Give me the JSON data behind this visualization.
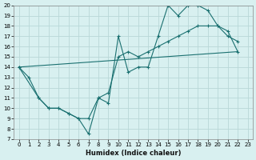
{
  "xlabel": "Humidex (Indice chaleur)",
  "bg_color": "#d8f0f0",
  "grid_color": "#b8d8d8",
  "line_color": "#1a7070",
  "xlim": [
    -0.5,
    23.5
  ],
  "ylim": [
    7,
    20
  ],
  "yticks": [
    7,
    8,
    9,
    10,
    11,
    12,
    13,
    14,
    15,
    16,
    17,
    18,
    19,
    20
  ],
  "xticks": [
    0,
    1,
    2,
    3,
    4,
    5,
    6,
    7,
    8,
    9,
    10,
    11,
    12,
    13,
    14,
    15,
    16,
    17,
    18,
    19,
    20,
    21,
    22,
    23
  ],
  "line1_x": [
    0,
    1,
    2,
    3,
    4,
    5,
    6,
    7,
    8,
    9,
    10,
    11,
    12,
    13,
    14,
    15,
    16,
    17,
    18,
    19,
    20,
    21,
    22
  ],
  "line1_y": [
    14,
    13,
    11,
    10,
    10,
    9.5,
    9,
    7.5,
    11,
    10.5,
    17,
    13.5,
    14,
    14,
    17,
    20,
    19,
    20,
    20,
    19.5,
    18,
    17,
    16.5
  ],
  "line2_x": [
    0,
    2,
    3,
    4,
    5,
    6,
    7,
    8,
    9,
    10,
    11,
    12,
    13,
    14,
    15,
    16,
    17,
    18,
    19,
    20,
    21,
    22
  ],
  "line2_y": [
    14,
    11,
    10,
    10,
    9.5,
    9,
    9,
    11,
    11.5,
    15,
    15.5,
    15,
    15.5,
    16,
    16.5,
    17,
    17.5,
    18,
    18,
    18,
    17.5,
    15.5
  ],
  "line3_x": [
    0,
    22
  ],
  "line3_y": [
    14,
    15.5
  ]
}
